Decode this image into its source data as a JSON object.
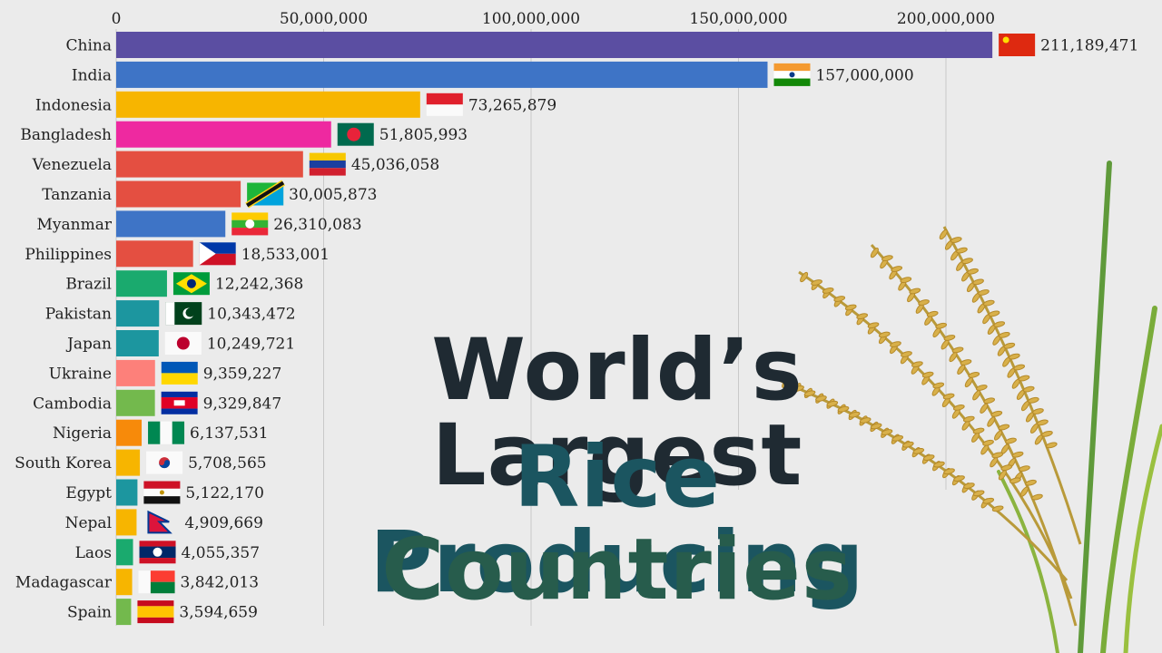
{
  "title": {
    "line1": "World’s Largest",
    "line2": "Rice Producing",
    "line3": "Countries"
  },
  "chart_data": {
    "type": "bar",
    "orientation": "horizontal",
    "xlim": [
      0,
      220000000
    ],
    "x_ticks": [
      0,
      50000000,
      100000000,
      150000000,
      200000000
    ],
    "x_tick_labels": [
      "0",
      "50,000,000",
      "100,000,000",
      "150,000,000",
      "200,000,000"
    ],
    "grid": true,
    "categories": [
      "China",
      "India",
      "Indonesia",
      "Bangladesh",
      "Venezuela",
      "Tanzania",
      "Myanmar",
      "Philippines",
      "Brazil",
      "Pakistan",
      "Japan",
      "Ukraine",
      "Cambodia",
      "Nigeria",
      "South Korea",
      "Egypt",
      "Nepal",
      "Laos",
      "Madagascar",
      "Spain"
    ],
    "values": [
      211189471,
      157000000,
      73265879,
      51805993,
      45036058,
      30005873,
      26310083,
      18533001,
      12242368,
      10343472,
      10249721,
      9359227,
      9329847,
      6137531,
      5708565,
      5122170,
      4909669,
      4055357,
      3842013,
      3594659
    ],
    "value_labels": [
      "211,189,471",
      "157,000,000",
      "73,265,879",
      "51,805,993",
      "45,036,058",
      "30,005,873",
      "26,310,083",
      "18,533,001",
      "12,242,368",
      "10,343,472",
      "10,249,721",
      "9,359,227",
      "9,329,847",
      "6,137,531",
      "5,708,565",
      "5,122,170",
      "4,909,669",
      "4,055,357",
      "3,842,013",
      "3,594,659"
    ],
    "colors": [
      "#5b4ea2",
      "#3e74c6",
      "#f7b500",
      "#ee29a0",
      "#e44f41",
      "#e44f41",
      "#3e74c6",
      "#e44f41",
      "#1aaa6e",
      "#1c969f",
      "#1c969f",
      "#fd807a",
      "#73b94d",
      "#f78a0a",
      "#f7b500",
      "#1c969f",
      "#f7b500",
      "#1aaa6e",
      "#f7b500",
      "#73b94d"
    ],
    "flags": [
      "china-flag",
      "india-flag",
      "indonesia-flag",
      "bangladesh-flag",
      "venezuela-flag",
      "tanzania-flag",
      "myanmar-flag",
      "philippines-flag",
      "brazil-flag",
      "pakistan-flag",
      "japan-flag",
      "ukraine-flag",
      "cambodia-flag",
      "nigeria-flag",
      "south-korea-flag",
      "egypt-flag",
      "nepal-flag",
      "laos-flag",
      "madagascar-flag",
      "spain-flag"
    ]
  }
}
